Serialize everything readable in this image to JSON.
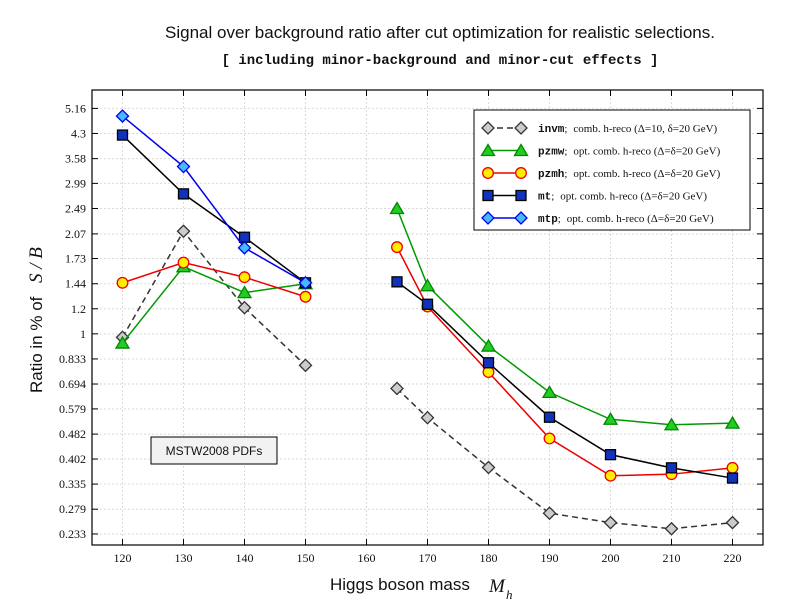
{
  "chart_data": {
    "type": "line",
    "title": "Signal over background ratio after cut optimization for realistic selections.",
    "subtitle": "[ including minor-background and minor-cut effects ]",
    "xlabel": "Higgs boson mass",
    "xlabel_symbol": "M",
    "xlabel_sub": "h",
    "ylabel": "Ratio in % of",
    "ylabel_symbol": "S / B",
    "yscale": "log",
    "ylim": [
      0.215,
      5.9
    ],
    "xlim": [
      115,
      225
    ],
    "grid": true,
    "x_ticks": [
      "120",
      "130",
      "140",
      "150",
      "160",
      "170",
      "180",
      "190",
      "200",
      "210",
      "220"
    ],
    "y_ticks": [
      "0.233",
      "0.279",
      "0.335",
      "0.402",
      "0.482",
      "0.579",
      "0.694",
      "0.833",
      "1",
      "1.2",
      "1.44",
      "1.73",
      "2.07",
      "2.49",
      "2.99",
      "3.58",
      "4.3",
      "5.16"
    ],
    "annotation": "MSTW2008 PDFs",
    "legend_position": "top-right",
    "series": [
      {
        "name": "invm",
        "label": "comb. h-reco (Δ=10, δ=20 GeV)",
        "color": "#333333",
        "fill": "#cccccc",
        "marker": "diamond",
        "dash": true,
        "segments": [
          {
            "x": [
              120,
              130,
              140,
              150
            ],
            "y": [
              0.975,
              2.11,
              1.21,
              0.795
            ]
          },
          {
            "x": [
              165,
              170,
              180,
              190,
              200,
              210,
              220
            ],
            "y": [
              0.672,
              0.543,
              0.378,
              0.271,
              0.253,
              0.242,
              0.253
            ]
          }
        ]
      },
      {
        "name": "pzmw",
        "label": "opt. comb. h-reco (Δ=δ=20 GeV)",
        "color": "#009900",
        "fill": "#22cc22",
        "marker": "triangle",
        "dash": false,
        "segments": [
          {
            "x": [
              120,
              130,
              140,
              150
            ],
            "y": [
              0.935,
              1.63,
              1.35,
              1.44
            ]
          },
          {
            "x": [
              165,
              170,
              180,
              190,
              200,
              210,
              220
            ],
            "y": [
              2.49,
              1.42,
              0.915,
              0.653,
              0.537,
              0.516,
              0.522
            ]
          }
        ]
      },
      {
        "name": "pzmh",
        "label": "opt. comb. h-reco (Δ=δ=20 GeV)",
        "color": "#ee0000",
        "fill": "#ffee00",
        "marker": "circle",
        "dash": false,
        "segments": [
          {
            "x": [
              120,
              130,
              140,
              150
            ],
            "y": [
              1.45,
              1.68,
              1.51,
              1.31
            ]
          },
          {
            "x": [
              165,
              170,
              180,
              190,
              200,
              210,
              220
            ],
            "y": [
              1.88,
              1.22,
              0.757,
              0.467,
              0.356,
              0.36,
              0.377
            ]
          }
        ]
      },
      {
        "name": "mt",
        "label": "opt. comb. h-reco (Δ=δ=20 GeV)",
        "color": "#000000",
        "fill": "#1133bb",
        "marker": "square",
        "dash": false,
        "segments": [
          {
            "x": [
              120,
              130,
              140,
              150
            ],
            "y": [
              4.25,
              2.77,
              2.02,
              1.45
            ]
          },
          {
            "x": [
              165,
              170,
              180,
              190,
              200,
              210,
              220
            ],
            "y": [
              1.46,
              1.24,
              0.81,
              0.545,
              0.415,
              0.377,
              0.35
            ]
          }
        ]
      },
      {
        "name": "mtp",
        "label": "opt. comb. h-reco (Δ=δ=20 GeV)",
        "color": "#0000ee",
        "fill": "#44bbff",
        "marker": "diamond",
        "dash": false,
        "segments": [
          {
            "x": [
              120,
              130,
              140,
              150
            ],
            "y": [
              4.88,
              3.38,
              1.87,
              1.45
            ]
          }
        ]
      }
    ]
  }
}
